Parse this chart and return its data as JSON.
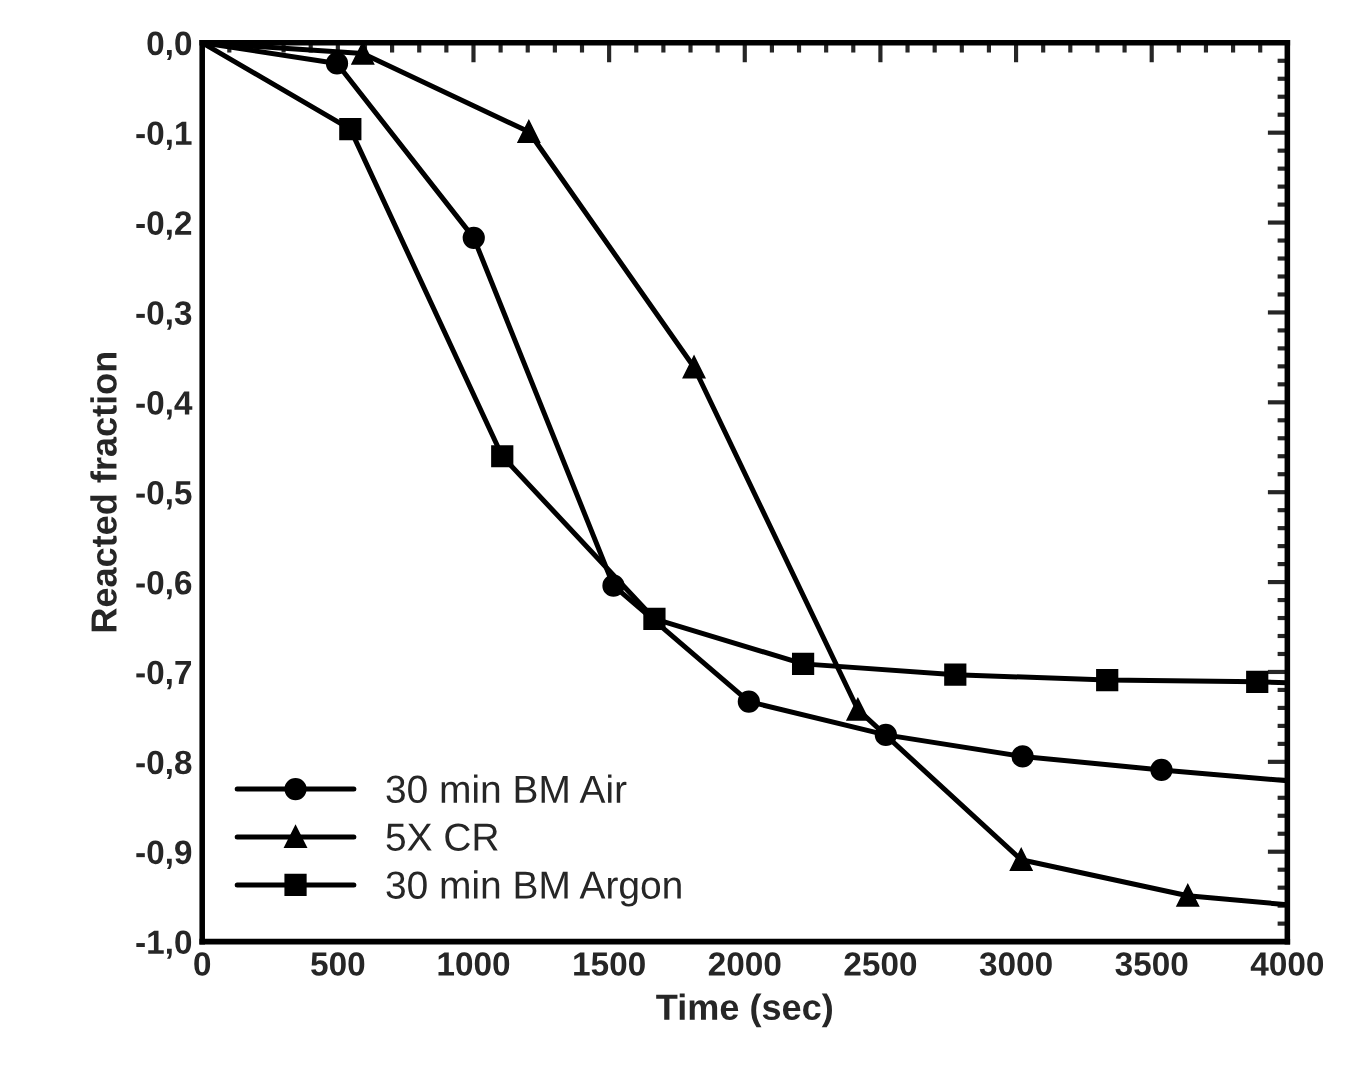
{
  "chart_data": {
    "type": "line",
    "xlabel": "Time (sec)",
    "ylabel": "Reacted fraction",
    "xlim": [
      0,
      4000
    ],
    "xticks": [
      0,
      500,
      1000,
      1500,
      2000,
      2500,
      3000,
      3500,
      4000
    ],
    "ylim": [
      -1.0,
      0.0
    ],
    "yticks": [
      {
        "value": 0.0,
        "label": "0,0"
      },
      {
        "value": -0.1,
        "label": "-0,1"
      },
      {
        "value": -0.2,
        "label": "-0,2"
      },
      {
        "value": -0.3,
        "label": "-0,3"
      },
      {
        "value": -0.4,
        "label": "-0,4"
      },
      {
        "value": -0.5,
        "label": "-0,5"
      },
      {
        "value": -0.6,
        "label": "-0,6"
      },
      {
        "value": -0.7,
        "label": "-0,7"
      },
      {
        "value": -0.8,
        "label": "-0,8"
      },
      {
        "value": -0.9,
        "label": "-0,9"
      },
      {
        "value": -1.0,
        "label": "-1,0"
      }
    ],
    "grid": false,
    "legend": "bottom left",
    "line_style": "solid",
    "series": [
      {
        "name": "30 min BM Air",
        "color": "#000000",
        "marker": "circle",
        "x": [
          0,
          497,
          1001,
          1516,
          2015,
          2520,
          3024,
          3536,
          4000
        ],
        "values": [
          0.0,
          -0.023,
          -0.217,
          -0.604,
          -0.733,
          -0.77,
          -0.794,
          -0.809,
          -0.821
        ]
      },
      {
        "name": "5X CR",
        "color": "#000000",
        "marker": "triangle",
        "x": [
          0,
          592,
          1204,
          1813,
          2417,
          3019,
          3633,
          4000
        ],
        "values": [
          0.0,
          -0.012,
          -0.099,
          -0.361,
          -0.742,
          -0.909,
          -0.949,
          -0.959
        ]
      },
      {
        "name": "30 min BM Argon",
        "color": "#000000",
        "marker": "square",
        "x": [
          0,
          546,
          1106,
          1667,
          2215,
          2776,
          3336,
          3889,
          4000
        ],
        "values": [
          0.0,
          -0.096,
          -0.46,
          -0.641,
          -0.691,
          -0.703,
          -0.709,
          -0.711,
          -0.712
        ]
      }
    ]
  }
}
